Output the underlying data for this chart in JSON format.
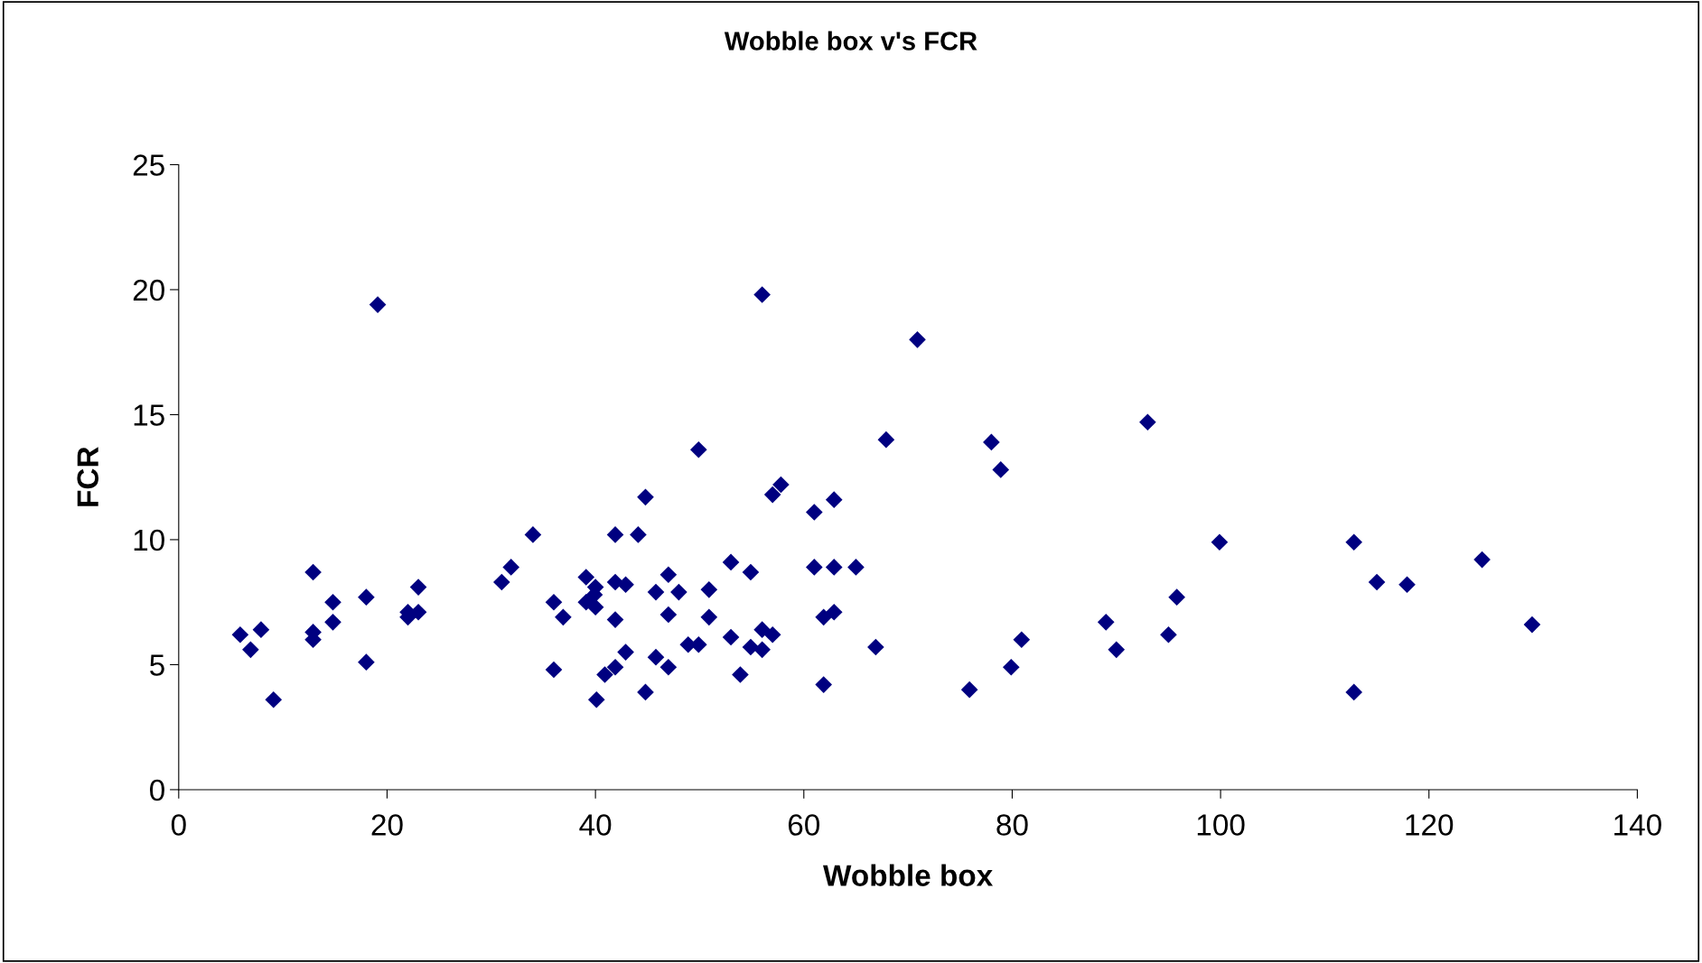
{
  "chart_data": {
    "type": "scatter",
    "title": "Wobble box v's FCR",
    "xlabel": "Wobble box",
    "ylabel": "FCR",
    "marker": "diamond",
    "grid": false,
    "legend": false,
    "xlim": [
      0,
      140
    ],
    "xticks": [
      0,
      20,
      40,
      60,
      80,
      100,
      120,
      140
    ],
    "ylim": [
      0,
      25
    ],
    "yticks": [
      0,
      5,
      10,
      15,
      20,
      25
    ],
    "series": [
      {
        "color": "#000080",
        "x": [
          5.9,
          6.9,
          7.9,
          9.1,
          12.9,
          12.9,
          12.9,
          14.8,
          14.8,
          18.0,
          18.0,
          19.1,
          22.0,
          22.0,
          23.0,
          23.0,
          31.0,
          31.9,
          34.0,
          36.0,
          36.0,
          36.9,
          39.1,
          39.1,
          40.0,
          40.0,
          40.1,
          39.9,
          40.9,
          41.9,
          41.9,
          41.9,
          41.9,
          42.9,
          42.9,
          44.1,
          44.8,
          44.8,
          45.8,
          45.8,
          47.0,
          47.0,
          47.0,
          48.0,
          48.9,
          49.9,
          49.9,
          50.9,
          50.9,
          53.0,
          53.0,
          53.9,
          54.9,
          54.9,
          56.0,
          56.0,
          56.0,
          57.0,
          57.0,
          57.8,
          61.0,
          61.0,
          61.9,
          61.9,
          62.9,
          62.9,
          62.9,
          65.0,
          66.9,
          67.9,
          70.9,
          75.9,
          78.0,
          78.9,
          79.9,
          80.9,
          89.0,
          90.0,
          93.0,
          95.0,
          95.8,
          99.9,
          112.8,
          112.8,
          115.0,
          117.9,
          125.1,
          129.9
        ],
        "values": [
          6.2,
          5.6,
          6.4,
          3.6,
          8.7,
          6.3,
          6.0,
          7.5,
          6.7,
          7.7,
          5.1,
          19.4,
          7.1,
          6.9,
          8.1,
          7.1,
          8.3,
          8.9,
          10.2,
          7.5,
          4.8,
          6.9,
          8.5,
          7.5,
          8.1,
          7.3,
          3.6,
          7.8,
          4.6,
          10.2,
          8.3,
          6.8,
          4.9,
          8.2,
          5.5,
          10.2,
          11.7,
          3.9,
          7.9,
          5.3,
          8.6,
          7.0,
          4.9,
          7.9,
          5.8,
          13.6,
          5.8,
          8.0,
          6.9,
          9.1,
          6.1,
          4.6,
          8.7,
          5.7,
          19.8,
          6.4,
          5.6,
          11.8,
          6.2,
          12.2,
          11.1,
          8.9,
          6.9,
          4.2,
          11.6,
          8.9,
          7.1,
          8.9,
          5.7,
          14.0,
          18.0,
          4.0,
          13.9,
          12.8,
          4.9,
          6.0,
          6.7,
          5.6,
          14.7,
          6.2,
          7.7,
          9.9,
          9.9,
          3.9,
          8.3,
          8.2,
          9.2,
          6.6
        ]
      }
    ]
  }
}
